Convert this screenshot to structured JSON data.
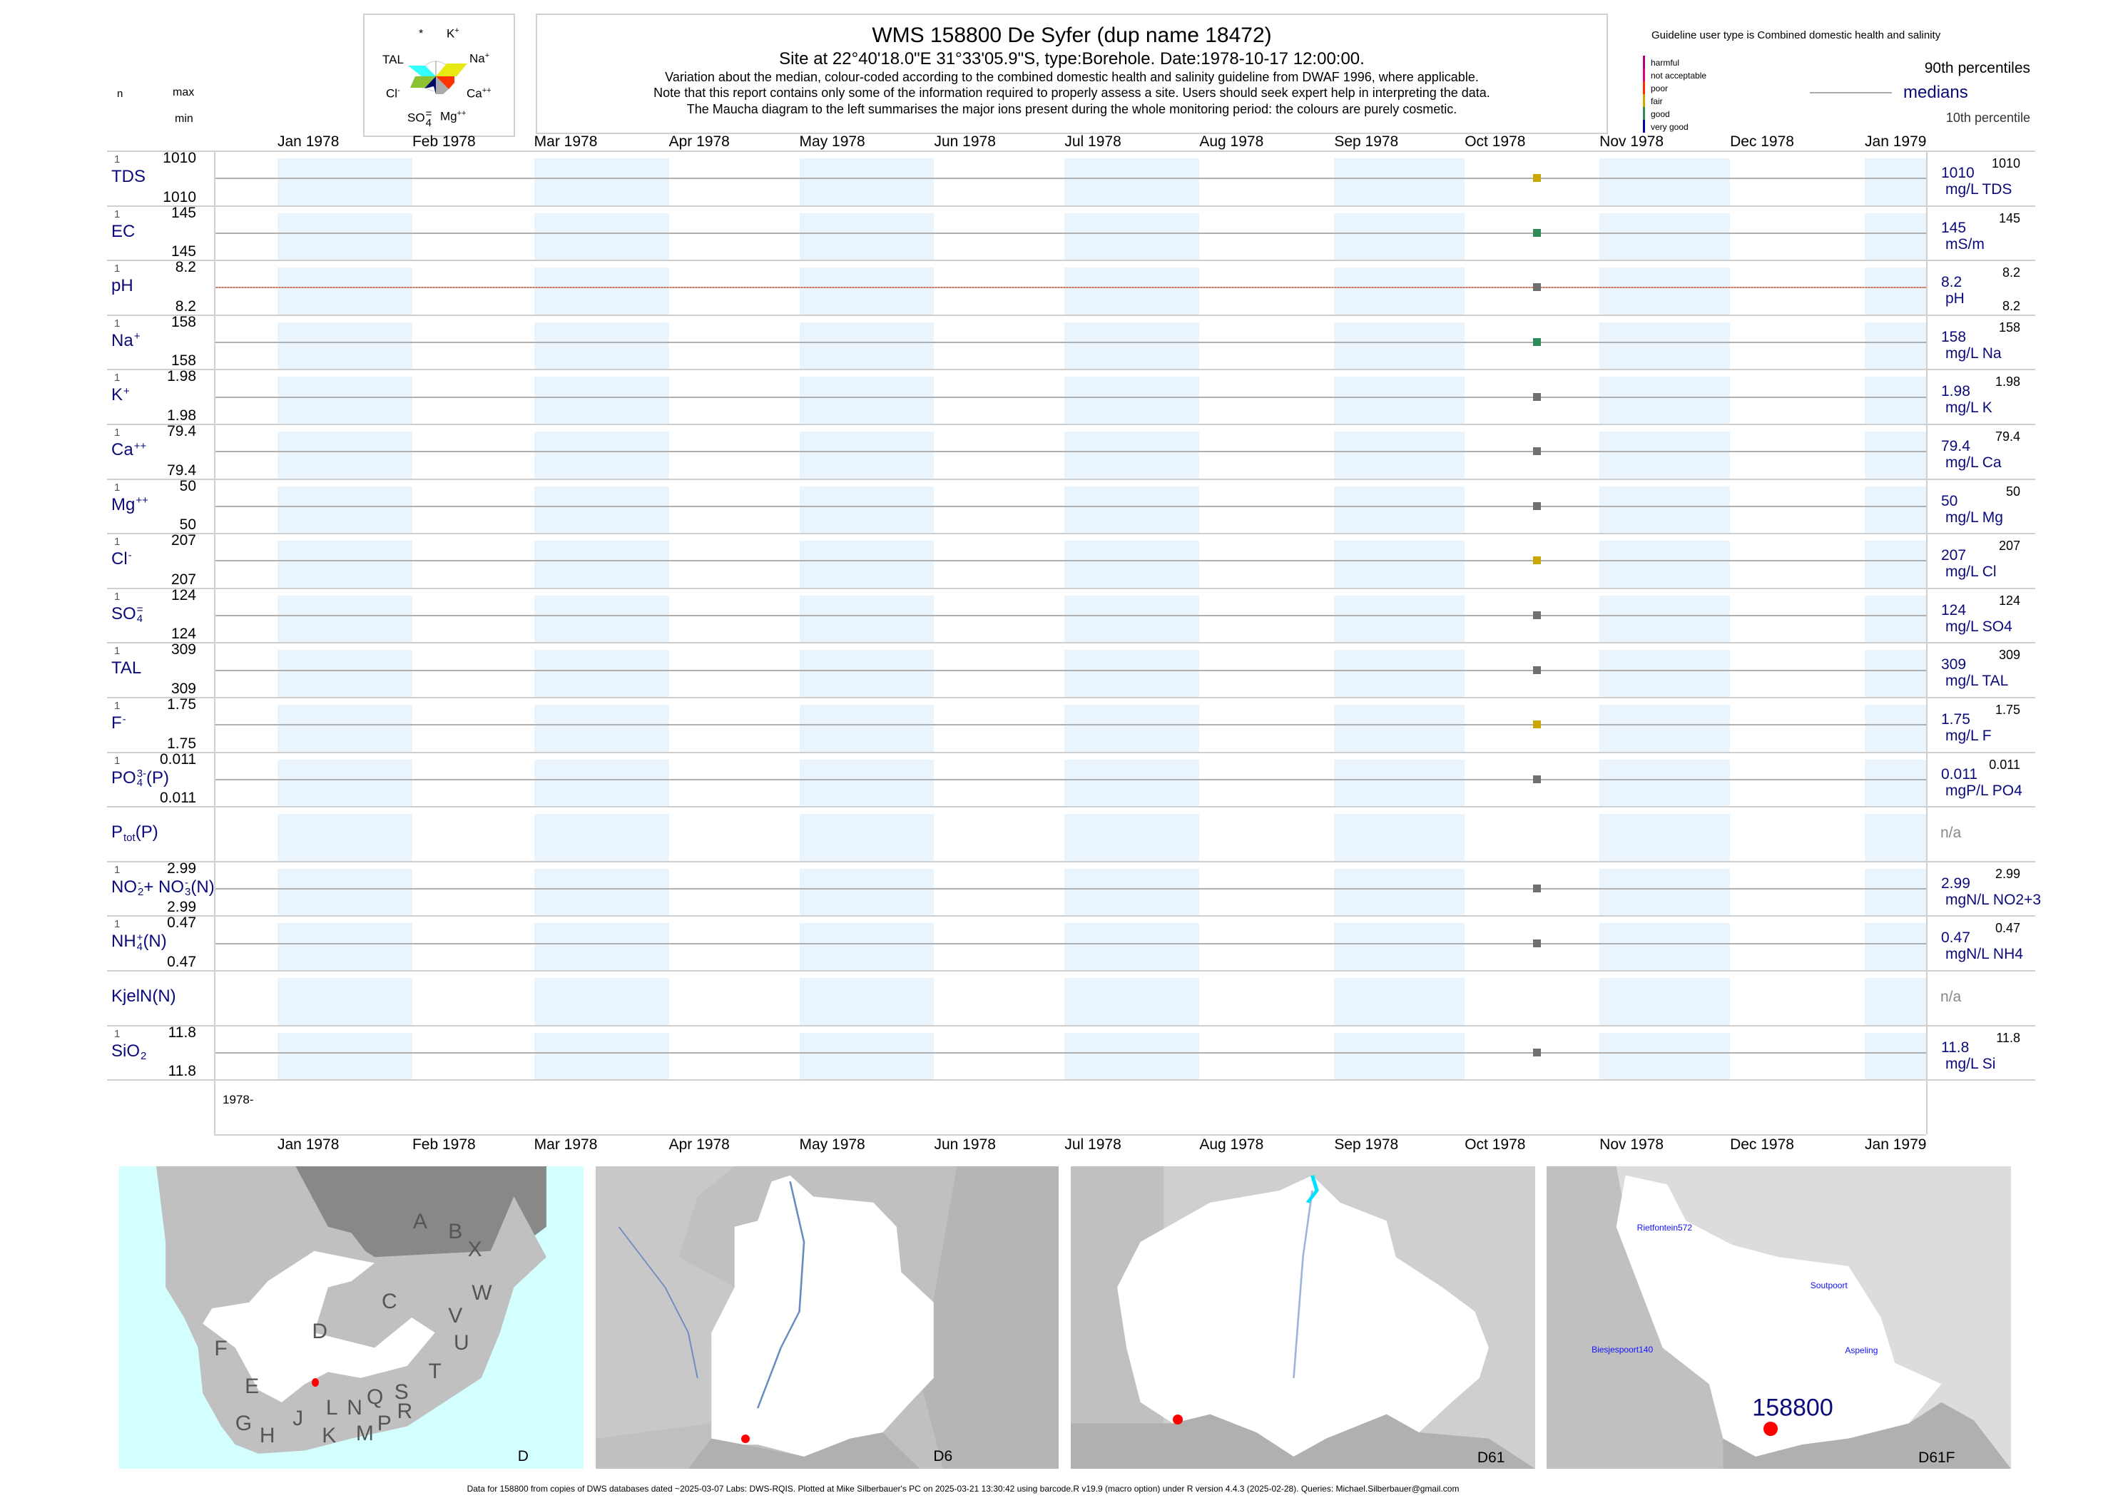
{
  "header": {
    "title": "WMS 158800  De Syfer (dup name 18472)",
    "subtitle": "Site at 22°40'18.0\"E 31°33'05.9\"S, type:Borehole. Date:1978-10-17 12:00:00.",
    "note1": "Variation about the median,  colour-coded according to the combined domestic health and salinity guideline from DWAF 1996, where applicable.",
    "note2": "Note that this report contains only some of the information required to properly assess a site. Users should seek expert help in interpreting the data.",
    "note3": "The Maucha diagram to the left summarises the major ions present during the whole monitoring period: the colours are purely cosmetic."
  },
  "maucha": {
    "labels": {
      "star": "*",
      "k": "K",
      "k_sup": "+",
      "tal": "TAL",
      "na": "Na",
      "na_sup": "+",
      "cl": "Cl",
      "cl_sup": "-",
      "ca": "Ca",
      "ca_sup": "++",
      "so4": "SO",
      "so4_sub": "4",
      "so4_sup": "=",
      "mg": "Mg",
      "mg_sup": "++"
    },
    "colors": {
      "tal": "#33ffff",
      "na": "#e8e812",
      "cl": "#8cc232",
      "ca": "#ff3300",
      "so4": "#000a6e",
      "mg": "#aaaaaa"
    }
  },
  "columns": {
    "n": "n",
    "max": "max",
    "min": "min"
  },
  "legend": {
    "guideline": "Guideline user type is Combined domestic health and salinity",
    "classes": [
      {
        "label": "harmful",
        "color": "#b0007a"
      },
      {
        "label": "not acceptable",
        "color": "#e0007a"
      },
      {
        "label": "poor",
        "color": "#ff2a00"
      },
      {
        "label": "fair",
        "color": "#d4a400"
      },
      {
        "label": "good",
        "color": "#2e8b57"
      },
      {
        "label": "very good",
        "color": "#0000b0"
      }
    ],
    "p90": "90th percentiles",
    "medians": "medians",
    "p10": "10th percentile"
  },
  "months_top": [
    "Jan 1978",
    "Feb 1978",
    "Mar 1978",
    "Apr 1978",
    "May 1978",
    "Jun 1978",
    "Jul 1978",
    "Aug 1978",
    "Sep 1978",
    "Oct 1978",
    "Nov 1978",
    "Dec 1978",
    "Jan 1979"
  ],
  "months_bottom": [
    "Jan 1978",
    "Feb 1978",
    "Mar 1978",
    "Apr 1978",
    "May 1978",
    "Jun 1978",
    "Jul 1978",
    "Aug 1978",
    "Sep 1978",
    "Oct 1978",
    "Nov 1978",
    "Dec 1978",
    "Jan 1979"
  ],
  "year_label": "1978-",
  "sample_date": "1978-10-17",
  "rows": [
    {
      "label": [
        {
          "t": "TDS"
        }
      ],
      "n": "1",
      "max": "1010",
      "min": "1010",
      "value": "1010",
      "unit": "mg/L TDS",
      "p90": "1010",
      "color": "#c8a800"
    },
    {
      "label": [
        {
          "t": "EC"
        }
      ],
      "n": "1",
      "max": "145",
      "min": "145",
      "value": "145",
      "unit": "mS/m",
      "p90": "145",
      "color": "#2e8b57"
    },
    {
      "label": [
        {
          "t": "pH"
        }
      ],
      "n": "1",
      "max": "8.2",
      "min": "8.2",
      "value": "8.2",
      "unit": "pH",
      "p90": "8.2",
      "p10": "8.2",
      "color": "#707070",
      "dotted": "#f07050"
    },
    {
      "label": [
        {
          "t": "Na",
          "sup": "+"
        }
      ],
      "n": "1",
      "max": "158",
      "min": "158",
      "value": "158",
      "unit": "mg/L Na",
      "p90": "158",
      "color": "#2e8b57"
    },
    {
      "label": [
        {
          "t": "K",
          "sup": "+"
        }
      ],
      "n": "1",
      "max": "1.98",
      "min": "1.98",
      "value": "1.98",
      "unit": "mg/L K",
      "p90": "1.98",
      "color": "#707070"
    },
    {
      "label": [
        {
          "t": "Ca",
          "sup": "++"
        }
      ],
      "n": "1",
      "max": "79.4",
      "min": "79.4",
      "value": "79.4",
      "unit": "mg/L Ca",
      "p90": "79.4",
      "color": "#707070"
    },
    {
      "label": [
        {
          "t": "Mg",
          "sup": "++"
        }
      ],
      "n": "1",
      "max": "50",
      "min": "50",
      "value": "50",
      "unit": "mg/L Mg",
      "p90": "50",
      "color": "#707070"
    },
    {
      "label": [
        {
          "t": "Cl",
          "sup": "-"
        }
      ],
      "n": "1",
      "max": "207",
      "min": "207",
      "value": "207",
      "unit": "mg/L Cl",
      "p90": "207",
      "color": "#c8a800"
    },
    {
      "label": [
        {
          "t": "SO",
          "sub": "4",
          "sup": "="
        }
      ],
      "n": "1",
      "max": "124",
      "min": "124",
      "value": "124",
      "unit": "mg/L SO4",
      "p90": "124",
      "color": "#707070"
    },
    {
      "label": [
        {
          "t": "TAL"
        }
      ],
      "n": "1",
      "max": "309",
      "min": "309",
      "value": "309",
      "unit": "mg/L TAL",
      "p90": "309",
      "color": "#707070"
    },
    {
      "label": [
        {
          "t": "F",
          "sup": "-"
        }
      ],
      "n": "1",
      "max": "1.75",
      "min": "1.75",
      "value": "1.75",
      "unit": "mg/L F",
      "p90": "1.75",
      "color": "#c8a800"
    },
    {
      "label": [
        {
          "t": "PO",
          "sub": "4",
          "sup": "3-"
        },
        {
          "t": "(P)"
        }
      ],
      "n": "1",
      "max": "0.011",
      "min": "0.011",
      "value": "0.011",
      "unit": "mgP/L PO4",
      "p90": "0.011",
      "color": "#707070"
    },
    {
      "label": [
        {
          "t": "P",
          "sub": "tot"
        },
        {
          "t": "(P)"
        }
      ],
      "na": "n/a"
    },
    {
      "label": [
        {
          "t": "NO",
          "sub": "2",
          "sup": "-"
        },
        {
          "t": "+ NO",
          "sub": "3",
          "sup": "-"
        },
        {
          "t": "(N)"
        }
      ],
      "n": "1",
      "max": "2.99",
      "min": "2.99",
      "value": "2.99",
      "unit": "mgN/L NO2+3",
      "p90": "2.99",
      "color": "#707070"
    },
    {
      "label": [
        {
          "t": "NH",
          "sub": "4",
          "sup": "+"
        },
        {
          "t": "(N)"
        }
      ],
      "n": "1",
      "max": "0.47",
      "min": "0.47",
      "value": "0.47",
      "unit": "mgN/L NH4",
      "p90": "0.47",
      "color": "#707070"
    },
    {
      "label": [
        {
          "t": "KjelN(N)"
        }
      ],
      "na": "n/a"
    },
    {
      "label": [
        {
          "t": "SiO",
          "sub": "2"
        }
      ],
      "n": "1",
      "max": "11.8",
      "min": "11.8",
      "value": "11.8",
      "unit": "mg/L Si",
      "p90": "11.8",
      "color": "#707070"
    }
  ],
  "maps": [
    {
      "label": "D",
      "letters": [
        "A",
        "B",
        "X",
        "W",
        "C",
        "V",
        "D",
        "U",
        "F",
        "T",
        "E",
        "S",
        "Q",
        "N",
        "L",
        "R",
        "G",
        "J",
        "P",
        "H",
        "K",
        "M"
      ]
    },
    {
      "label": "D6"
    },
    {
      "label": "D61"
    },
    {
      "label": "D61F",
      "site": "158800",
      "places": [
        "Rietfontein572",
        "Soutpoort",
        "Aspeling",
        "Biesjespoort140"
      ]
    }
  ],
  "footer": "Data for 158800 from copies of DWS databases dated ~2025-03-07 Labs: DWS-RQIS. Plotted at Mike Silberbauer's PC on 2025-03-21 13:30:42 using barcode.R v19.9 (macro option) under R version 4.4.3 (2025-02-28). Queries: Michael.Silberbauer@gmail.com"
}
